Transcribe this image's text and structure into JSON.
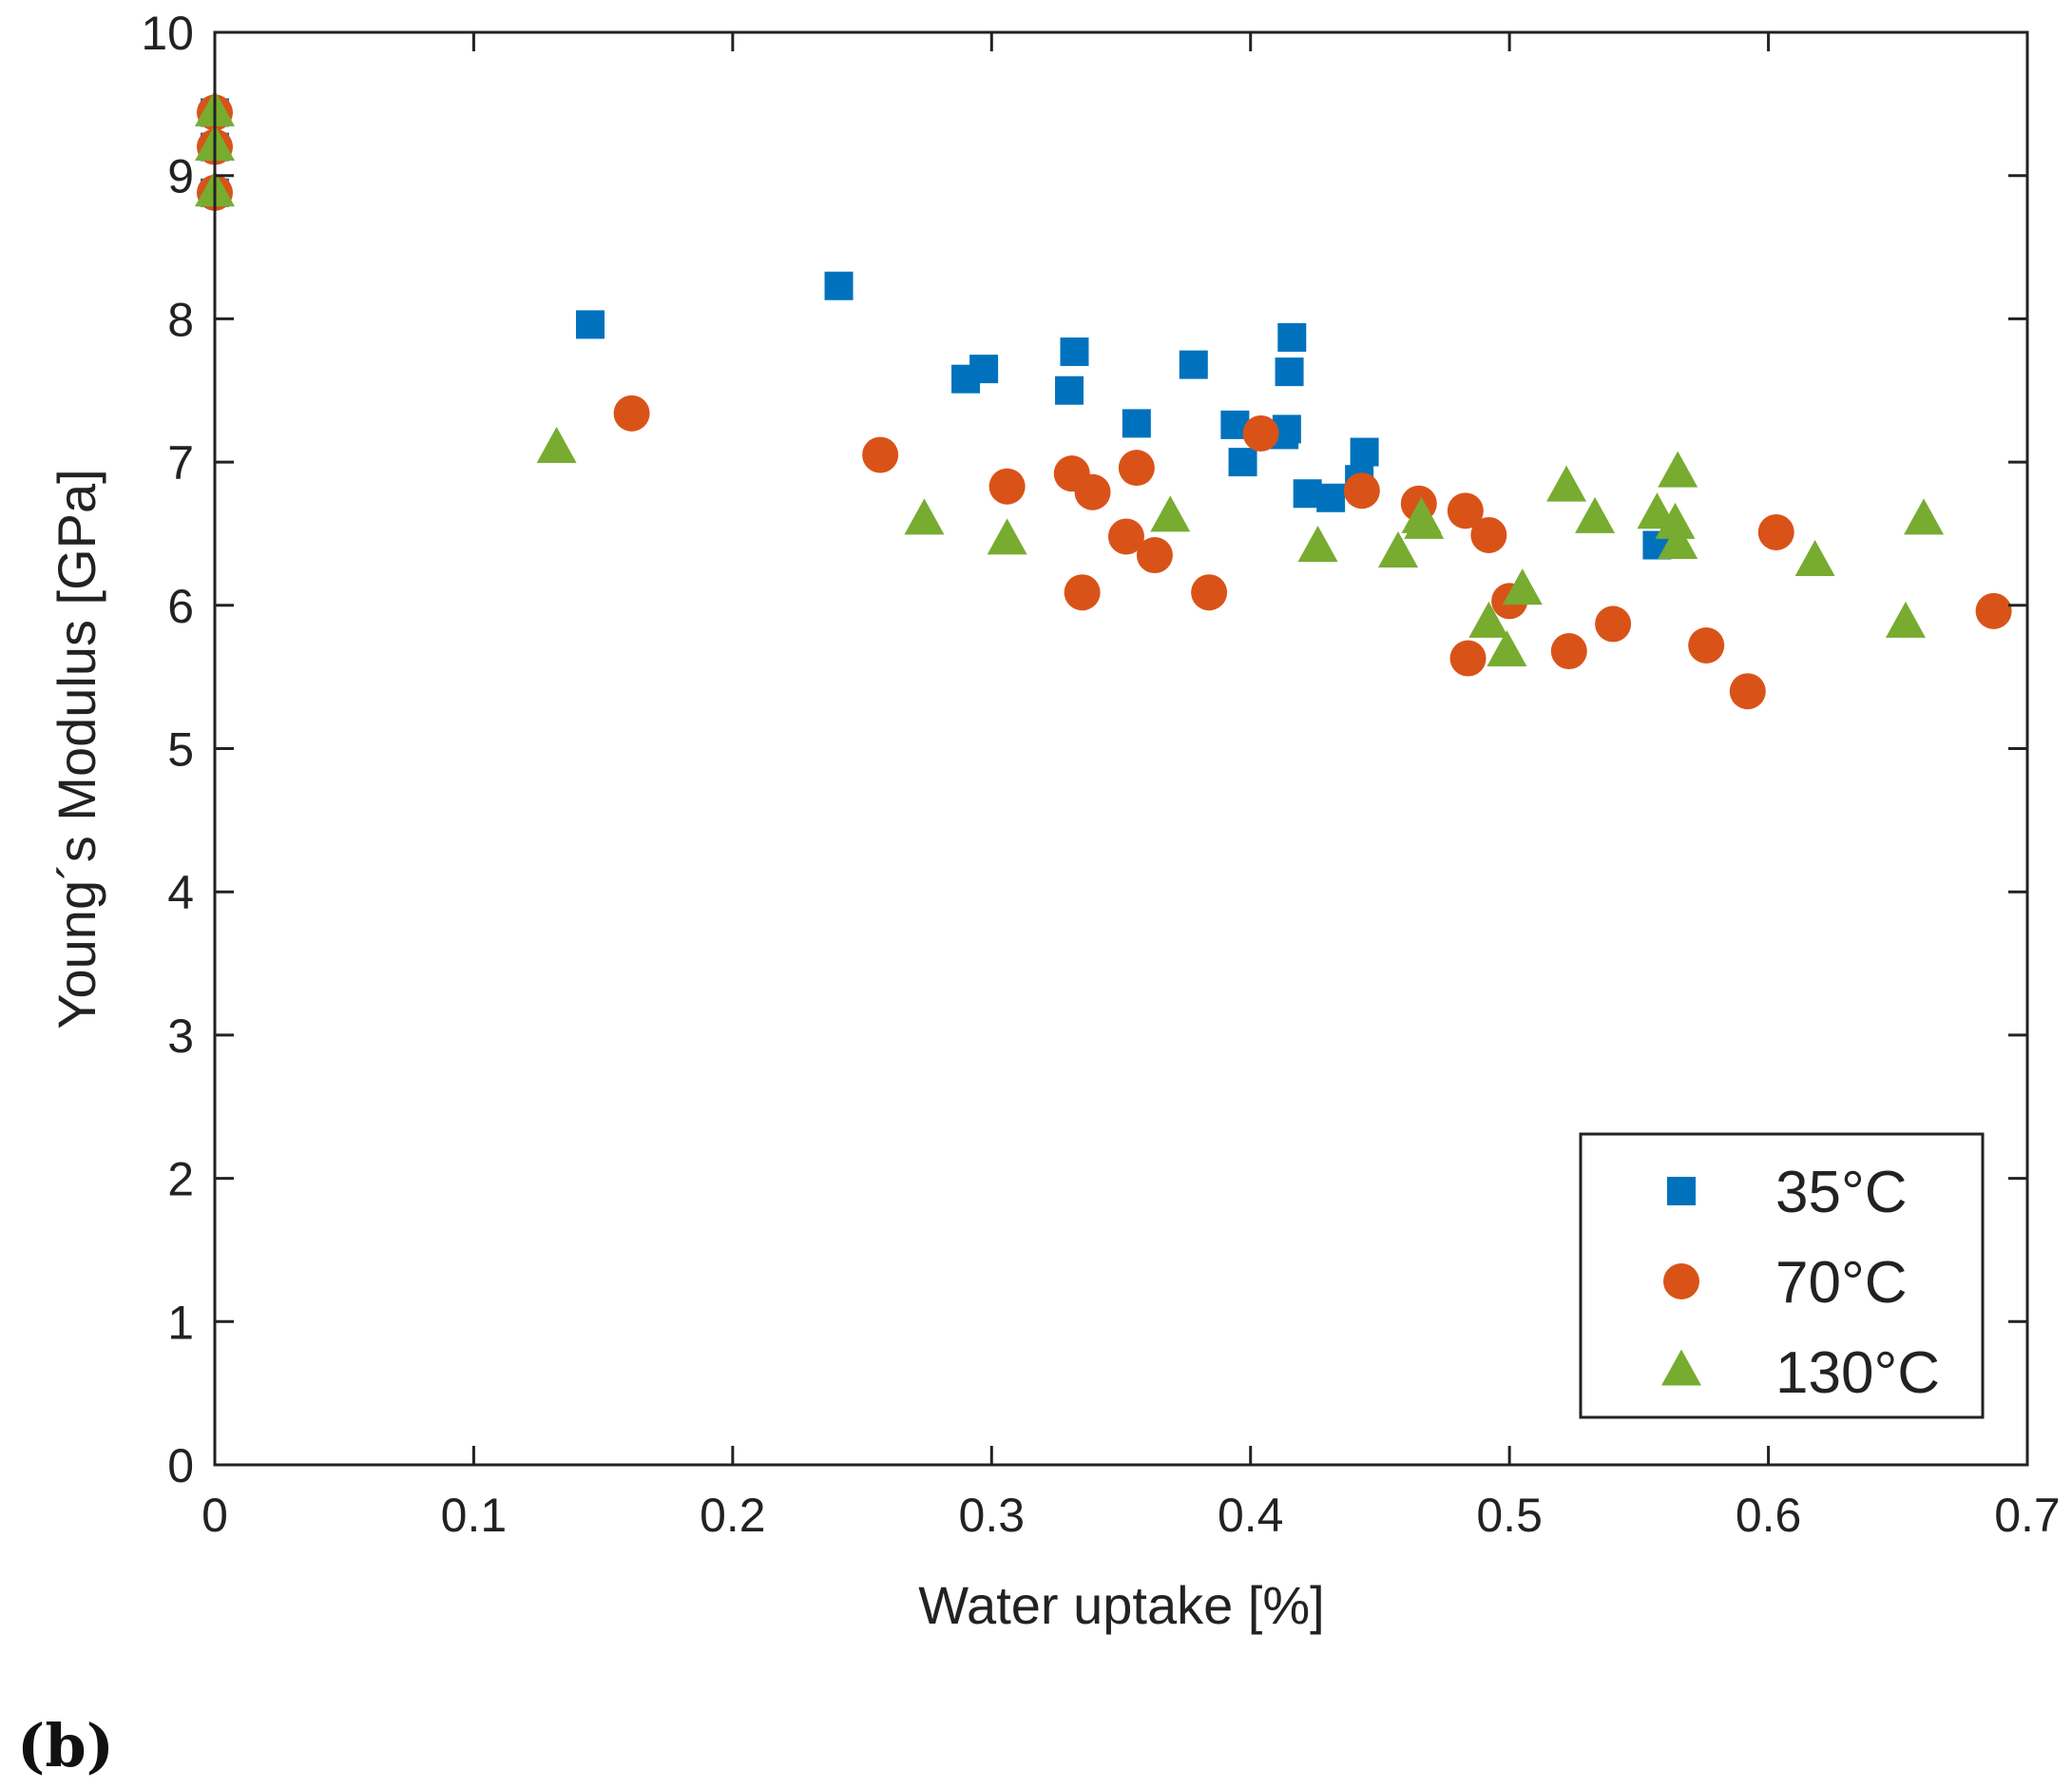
{
  "panel_label": "(b)",
  "chart_data": {
    "type": "scatter",
    "title": "",
    "xlabel": "Water uptake [%]",
    "ylabel": "Young´s Modulus [GPa]",
    "xlim": [
      0,
      0.7
    ],
    "ylim": [
      0,
      10
    ],
    "xticks": [
      0,
      0.1,
      0.2,
      0.3,
      0.4,
      0.5,
      0.6,
      0.7
    ],
    "xtick_labels": [
      "0",
      "0.1",
      "0.2",
      "0.3",
      "0.4",
      "0.5",
      "0.6",
      "0.7"
    ],
    "yticks": [
      0,
      1,
      2,
      3,
      4,
      5,
      6,
      7,
      8,
      9,
      10
    ],
    "ytick_labels": [
      "0",
      "1",
      "2",
      "3",
      "4",
      "5",
      "6",
      "7",
      "8",
      "9",
      "10"
    ],
    "grid": false,
    "legend_position": "bottom-right",
    "series": [
      {
        "name": "35°C",
        "marker": "square",
        "color": "#0072BD",
        "points": [
          [
            0,
            9.44
          ],
          [
            0,
            9.2
          ],
          [
            0,
            8.88
          ],
          [
            0.145,
            7.96
          ],
          [
            0.241,
            8.23
          ],
          [
            0.29,
            7.58
          ],
          [
            0.297,
            7.65
          ],
          [
            0.33,
            7.5
          ],
          [
            0.332,
            7.77
          ],
          [
            0.356,
            7.27
          ],
          [
            0.378,
            7.68
          ],
          [
            0.394,
            7.26
          ],
          [
            0.397,
            7.0
          ],
          [
            0.413,
            7.19
          ],
          [
            0.414,
            7.23
          ],
          [
            0.415,
            7.63
          ],
          [
            0.416,
            7.87
          ],
          [
            0.422,
            6.78
          ],
          [
            0.431,
            6.75
          ],
          [
            0.442,
            6.88
          ],
          [
            0.444,
            7.07
          ],
          [
            0.557,
            6.42
          ]
        ]
      },
      {
        "name": "70°C",
        "marker": "circle",
        "color": "#D95319",
        "points": [
          [
            0,
            9.44
          ],
          [
            0,
            9.2
          ],
          [
            0,
            8.88
          ],
          [
            0.161,
            7.34
          ],
          [
            0.257,
            7.05
          ],
          [
            0.306,
            6.83
          ],
          [
            0.331,
            6.92
          ],
          [
            0.335,
            6.09
          ],
          [
            0.339,
            6.79
          ],
          [
            0.352,
            6.48
          ],
          [
            0.356,
            6.96
          ],
          [
            0.363,
            6.35
          ],
          [
            0.384,
            6.09
          ],
          [
            0.404,
            7.2
          ],
          [
            0.443,
            6.8
          ],
          [
            0.465,
            6.71
          ],
          [
            0.483,
            6.66
          ],
          [
            0.484,
            5.63
          ],
          [
            0.492,
            6.49
          ],
          [
            0.5,
            6.03
          ],
          [
            0.523,
            5.68
          ],
          [
            0.54,
            5.87
          ],
          [
            0.576,
            5.72
          ],
          [
            0.592,
            5.4
          ],
          [
            0.603,
            6.51
          ],
          [
            0.687,
            5.96
          ]
        ]
      },
      {
        "name": "130°C",
        "marker": "triangle",
        "color": "#77AC30",
        "points": [
          [
            0,
            9.44
          ],
          [
            0,
            9.2
          ],
          [
            0,
            8.88
          ],
          [
            0.132,
            7.09
          ],
          [
            0.274,
            6.59
          ],
          [
            0.306,
            6.45
          ],
          [
            0.369,
            6.61
          ],
          [
            0.426,
            6.4
          ],
          [
            0.457,
            6.36
          ],
          [
            0.466,
            6.6
          ],
          [
            0.467,
            6.56
          ],
          [
            0.492,
            5.87
          ],
          [
            0.499,
            5.67
          ],
          [
            0.505,
            6.1
          ],
          [
            0.522,
            6.82
          ],
          [
            0.533,
            6.6
          ],
          [
            0.557,
            6.63
          ],
          [
            0.564,
            6.56
          ],
          [
            0.565,
            6.42
          ],
          [
            0.565,
            6.92
          ],
          [
            0.618,
            6.3
          ],
          [
            0.653,
            5.87
          ],
          [
            0.66,
            6.59
          ]
        ]
      }
    ]
  }
}
